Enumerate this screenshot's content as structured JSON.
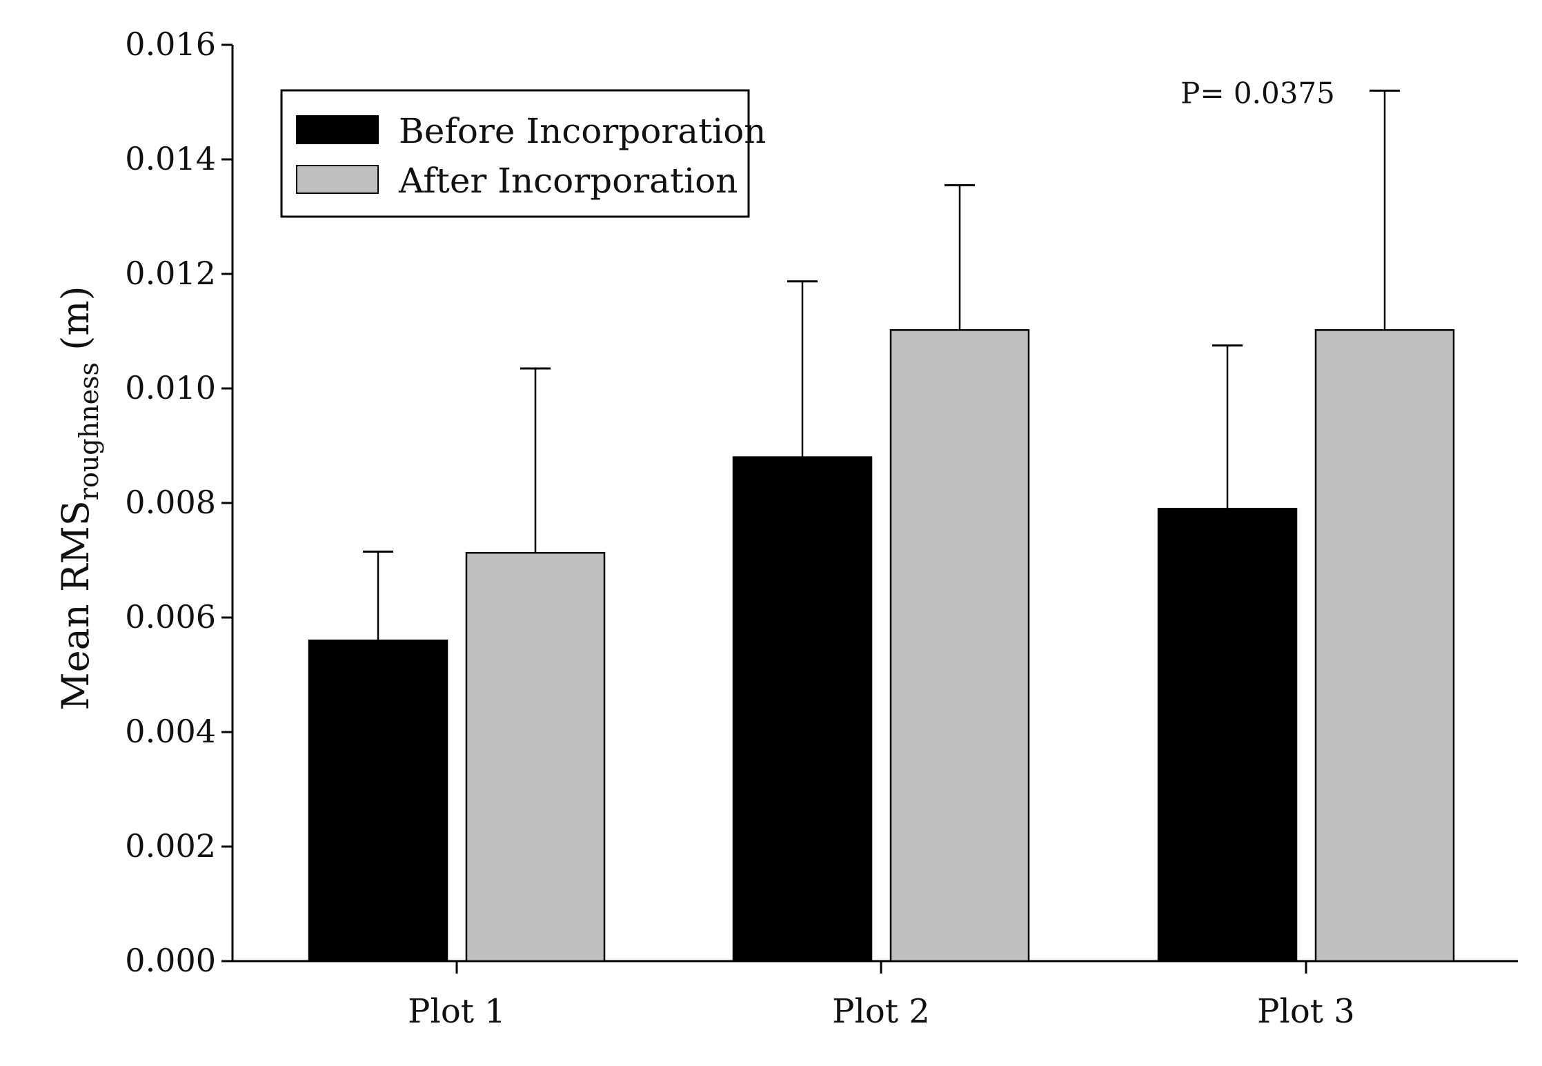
{
  "chart_data": {
    "type": "bar",
    "title": "",
    "xlabel": "",
    "ylabel": {
      "prefix": "Mean RMS",
      "subscript": "roughness",
      "suffix": " (m)"
    },
    "categories": [
      "Plot 1",
      "Plot 2",
      "Plot 3"
    ],
    "series": [
      {
        "name": "Before Incorporation",
        "color": "#000000",
        "values": [
          0.0056,
          0.0088,
          0.0079
        ],
        "error_upper": [
          0.00715,
          0.01187,
          0.01075
        ]
      },
      {
        "name": "After Incorporation",
        "color": "#c0c0c0",
        "values": [
          0.00713,
          0.01102,
          0.01102
        ],
        "error_upper": [
          0.01035,
          0.01355,
          0.0152
        ]
      }
    ],
    "ylim": [
      0,
      0.016
    ],
    "yticks": [
      "0.000",
      "0.002",
      "0.004",
      "0.006",
      "0.008",
      "0.010",
      "0.012",
      "0.014",
      "0.016"
    ],
    "ytick_values": [
      0,
      0.002,
      0.004,
      0.006,
      0.008,
      0.01,
      0.012,
      0.014,
      0.016
    ],
    "legend_position": "top-left",
    "annotations": [
      {
        "text": "P= 0.0375",
        "near_category": "Plot 3",
        "y": 0.0152
      }
    ]
  }
}
